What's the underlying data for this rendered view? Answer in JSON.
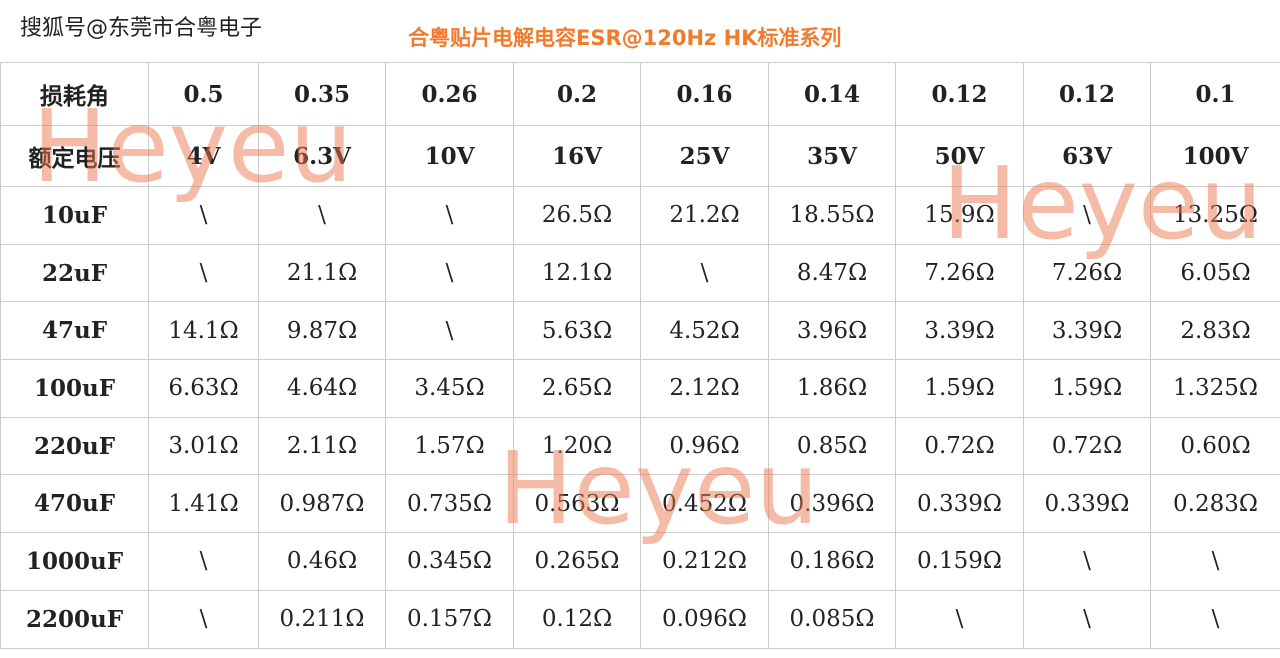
{
  "header": {
    "watermark": "搜狐号@东莞市合粤电子",
    "title": "合粤贴片电解电容ESR@120Hz HK标准系列"
  },
  "table": {
    "rows": [
      [
        "损耗角",
        "0.5",
        "0.35",
        "0.26",
        "0.2",
        "0.16",
        "0.14",
        "0.12",
        "0.12",
        "0.1"
      ],
      [
        "额定电压",
        "4V",
        "6.3V",
        "10V",
        "16V",
        "25V",
        "35V",
        "50V",
        "63V",
        "100V"
      ],
      [
        "10uF",
        "\\",
        "\\",
        "\\",
        "26.5Ω",
        "21.2Ω",
        "18.55Ω",
        "15.9Ω",
        "\\",
        "13.25Ω"
      ],
      [
        "22uF",
        "\\",
        "21.1Ω",
        "\\",
        "12.1Ω",
        "\\",
        "8.47Ω",
        "7.26Ω",
        "7.26Ω",
        "6.05Ω"
      ],
      [
        "47uF",
        "14.1Ω",
        "9.87Ω",
        "\\",
        "5.63Ω",
        "4.52Ω",
        "3.96Ω",
        "3.39Ω",
        "3.39Ω",
        "2.83Ω"
      ],
      [
        "100uF",
        "6.63Ω",
        "4.64Ω",
        "3.45Ω",
        "2.65Ω",
        "2.12Ω",
        "1.86Ω",
        "1.59Ω",
        "1.59Ω",
        "1.325Ω"
      ],
      [
        "220uF",
        "3.01Ω",
        "2.11Ω",
        "1.57Ω",
        "1.20Ω",
        "0.96Ω",
        "0.85Ω",
        "0.72Ω",
        "0.72Ω",
        "0.60Ω"
      ],
      [
        "470uF",
        "1.41Ω",
        "0.987Ω",
        "0.735Ω",
        "0.563Ω",
        "0.452Ω",
        "0.396Ω",
        "0.339Ω",
        "0.339Ω",
        "0.283Ω"
      ],
      [
        "1000uF",
        "\\",
        "0.46Ω",
        "0.345Ω",
        "0.265Ω",
        "0.212Ω",
        "0.186Ω",
        "0.159Ω",
        "\\",
        "\\"
      ],
      [
        "2200uF",
        "\\",
        "0.211Ω",
        "0.157Ω",
        "0.12Ω",
        "0.096Ω",
        "0.085Ω",
        "\\",
        "\\",
        "\\"
      ]
    ]
  },
  "watermarks": [
    "Heyeu",
    "Heyeu",
    "Heyeu"
  ]
}
